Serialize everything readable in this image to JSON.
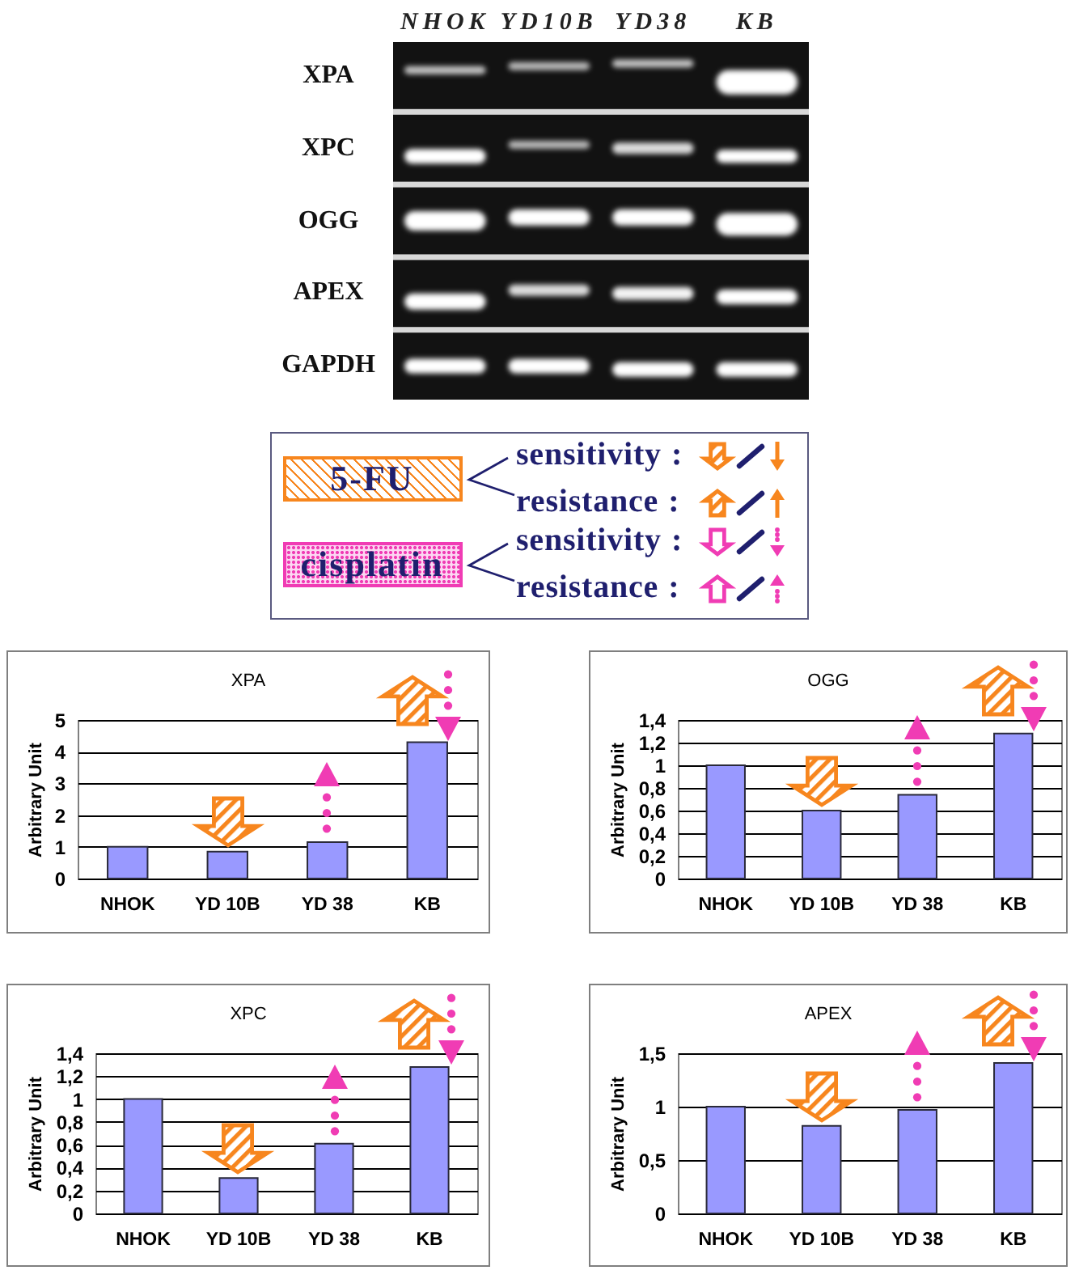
{
  "chart_data": [
    {
      "type": "other",
      "categories": [
        "NHOK",
        "YD10B",
        "YD38",
        "KB"
      ],
      "y_categories": [
        "XPA",
        "XPC",
        "OGG",
        "APEX",
        "GAPDH"
      ]
    },
    {
      "type": "other",
      "categories": [
        "sensitivity",
        "resistance"
      ],
      "y_categories": [
        "5-FU",
        "cisplatin"
      ],
      "annotations": [
        ":"
      ]
    },
    {
      "type": "bar",
      "title": "XPA",
      "ylabel": "Arbitrary Unit",
      "categories": [
        "NHOK",
        "YD 10B",
        "YD 38",
        "KB"
      ],
      "values": [
        1.0,
        0.85,
        1.15,
        4.3
      ],
      "color": "#9999ff",
      "ylim": [
        0,
        5
      ],
      "yticks": [
        0,
        1,
        2,
        3,
        4,
        5
      ],
      "grid": "y"
    },
    {
      "type": "bar",
      "title": "OGG",
      "ylabel": "Arbitrary Unit",
      "categories": [
        "NHOK",
        "YD 10B",
        "YD 38",
        "KB"
      ],
      "values": [
        1.0,
        0.6,
        0.74,
        1.28
      ],
      "color": "#9999ff",
      "ylim": [
        0,
        1.4
      ],
      "yticks": [
        0,
        {
          "value": 0.2,
          "label": "0,2"
        },
        {
          "value": 0.4,
          "label": "0,4"
        },
        {
          "value": 0.6,
          "label": "0,6"
        },
        {
          "value": 0.8,
          "label": "0,8"
        },
        1,
        {
          "value": 1.2,
          "label": "1,2"
        },
        {
          "value": 1.4,
          "label": "1,4"
        }
      ],
      "grid": "y"
    },
    {
      "type": "bar",
      "title": "XPC",
      "ylabel": "Arbitrary Unit",
      "categories": [
        "NHOK",
        "YD 10B",
        "YD 38",
        "KB"
      ],
      "values": [
        1.0,
        0.31,
        0.61,
        1.28
      ],
      "color": "#9999ff",
      "ylim": [
        0,
        1.4
      ],
      "yticks": [
        0,
        {
          "value": 0.2,
          "label": "0,2"
        },
        {
          "value": 0.4,
          "label": "0,4"
        },
        {
          "value": 0.6,
          "label": "0,6"
        },
        {
          "value": 0.8,
          "label": "0,8"
        },
        1,
        {
          "value": 1.2,
          "label": "1,2"
        },
        {
          "value": 1.4,
          "label": "1,4"
        }
      ],
      "grid": "y"
    },
    {
      "type": "bar",
      "title": "APEX",
      "ylabel": "Arbitrary Unit",
      "categories": [
        "NHOK",
        "YD 10B",
        "YD 38",
        "KB"
      ],
      "values": [
        1.0,
        0.82,
        0.97,
        1.41
      ],
      "color": "#9999ff",
      "ylim": [
        0,
        1.5
      ],
      "yticks": [
        0,
        {
          "value": 0.5,
          "label": "0,5"
        },
        1,
        {
          "value": 1.5,
          "label": "1,5"
        }
      ],
      "grid": "y"
    }
  ]
}
